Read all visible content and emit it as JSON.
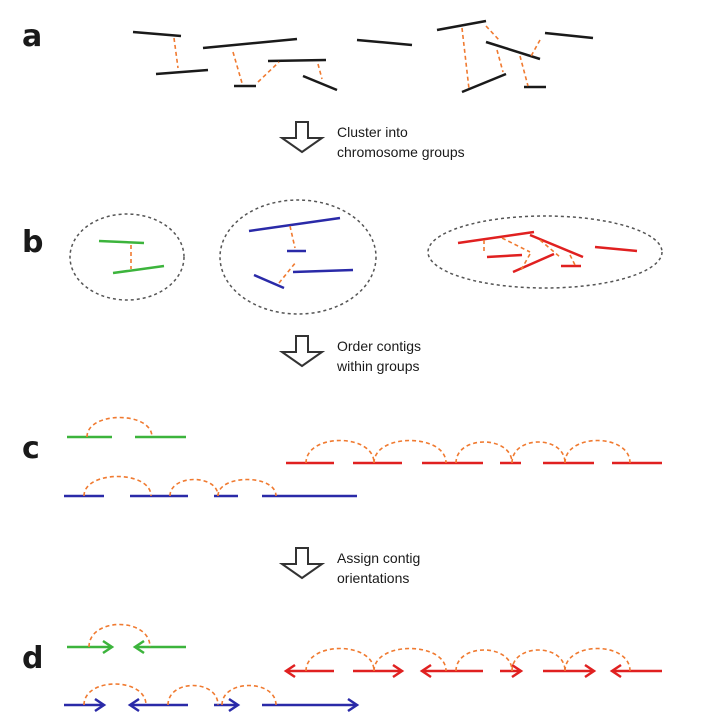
{
  "panels": {
    "a": "a",
    "b": "b",
    "c": "c",
    "d": "d"
  },
  "steps": [
    {
      "line1": "Cluster into",
      "line2": "chromosome groups"
    },
    {
      "line1": "Order contigs",
      "line2": "within groups"
    },
    {
      "line1": "Assign contig",
      "line2": "orientations"
    }
  ],
  "colors": {
    "contig_unassigned": "#1a1a1a",
    "group_green": "#3cb43c",
    "group_blue": "#2a2aa8",
    "group_red": "#e02020",
    "link": "#f07a30",
    "cluster_outline": "#555555",
    "arrow_outline": "#333333"
  }
}
